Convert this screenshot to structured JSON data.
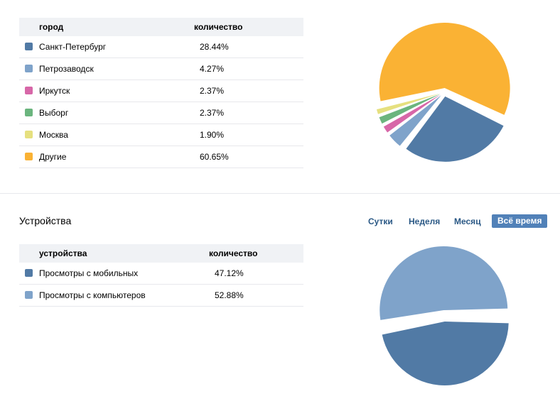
{
  "cities": {
    "header": {
      "city": "город",
      "count": "количество"
    },
    "rows": [
      {
        "label": "Санкт-Петербург",
        "value": "28.44%",
        "color": "#517aa5"
      },
      {
        "label": "Петрозаводск",
        "value": "4.27%",
        "color": "#7fa3ca"
      },
      {
        "label": "Иркутск",
        "value": "2.37%",
        "color": "#d767a8"
      },
      {
        "label": "Выборг",
        "value": "2.37%",
        "color": "#6bb57e"
      },
      {
        "label": "Москва",
        "value": "1.90%",
        "color": "#e6e07f"
      },
      {
        "label": "Другие",
        "value": "60.65%",
        "color": "#fab234"
      }
    ]
  },
  "devices": {
    "title": "Устройства",
    "header": {
      "device": "устройства",
      "count": "количество"
    },
    "rows": [
      {
        "label": "Просмотры с мобильных",
        "value": "47.12%",
        "color": "#517aa5"
      },
      {
        "label": "Просмотры с компьютеров",
        "value": "52.88%",
        "color": "#7fa3ca"
      }
    ]
  },
  "periods": {
    "day": "Сутки",
    "week": "Неделя",
    "month": "Месяц",
    "all": "Всё время"
  },
  "chart_data": [
    {
      "type": "pie",
      "categories": [
        "Санкт-Петербург",
        "Петрозаводск",
        "Иркутск",
        "Выборг",
        "Москва",
        "Другие"
      ],
      "values": [
        28.44,
        4.27,
        2.37,
        2.37,
        1.9,
        60.65
      ],
      "colors": [
        "#517aa5",
        "#7fa3ca",
        "#d767a8",
        "#6bb57e",
        "#e6e07f",
        "#fab234"
      ]
    },
    {
      "type": "pie",
      "categories": [
        "Просмотры с мобильных",
        "Просмотры с компьютеров"
      ],
      "values": [
        47.12,
        52.88
      ],
      "colors": [
        "#517aa5",
        "#7fa3ca"
      ]
    }
  ]
}
